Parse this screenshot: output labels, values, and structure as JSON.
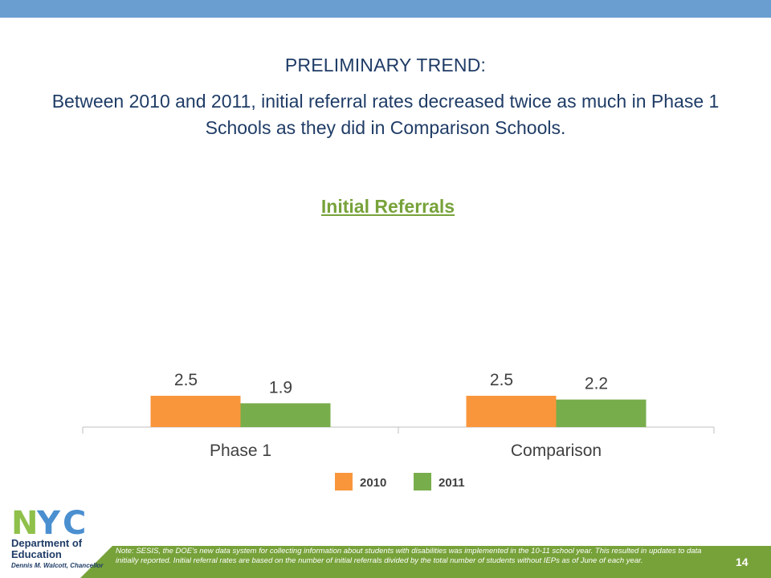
{
  "slide": {
    "heading": "PRELIMINARY TREND:",
    "subheading": "Between 2010 and 2011, initial referral rates decreased twice as much in Phase 1 Schools as they did in Comparison Schools.",
    "page_number": "14",
    "note": "Note: SESIS, the DOE's new data system for collecting information about students with disabilities was implemented in the 10-11 school year. This resulted in updates to data initially reported. Initial referral rates are based on the number of initial referrals divided by the total number of students without IEPs as of June of each year."
  },
  "logo": {
    "nyc": "NYC",
    "department_line1": "Department of",
    "department_line2": "Education",
    "chancellor": "Dennis M. Walcott, Chancellor"
  },
  "colors": {
    "top_bar": "#6a9ed0",
    "heading_text": "#1f3c66",
    "chart_title": "#77a23a",
    "footer_band": "#77a23a",
    "series_2010": "#f9963b",
    "series_2011": "#78ad4b",
    "logo_blue": "#4a8fd0",
    "logo_green": "#8ec04a"
  },
  "chart_data": {
    "type": "bar",
    "title": "Initial Referrals",
    "categories": [
      "Phase 1",
      "Comparison"
    ],
    "series": [
      {
        "name": "2010",
        "values": [
          2.5,
          2.5
        ],
        "labels": [
          "2.5",
          "2.5"
        ]
      },
      {
        "name": "2011",
        "values": [
          1.9,
          2.2
        ],
        "labels": [
          "1.9",
          "2.2"
        ]
      }
    ],
    "ylim": [
      0,
      15
    ],
    "legend_position": "bottom",
    "grid": false
  }
}
